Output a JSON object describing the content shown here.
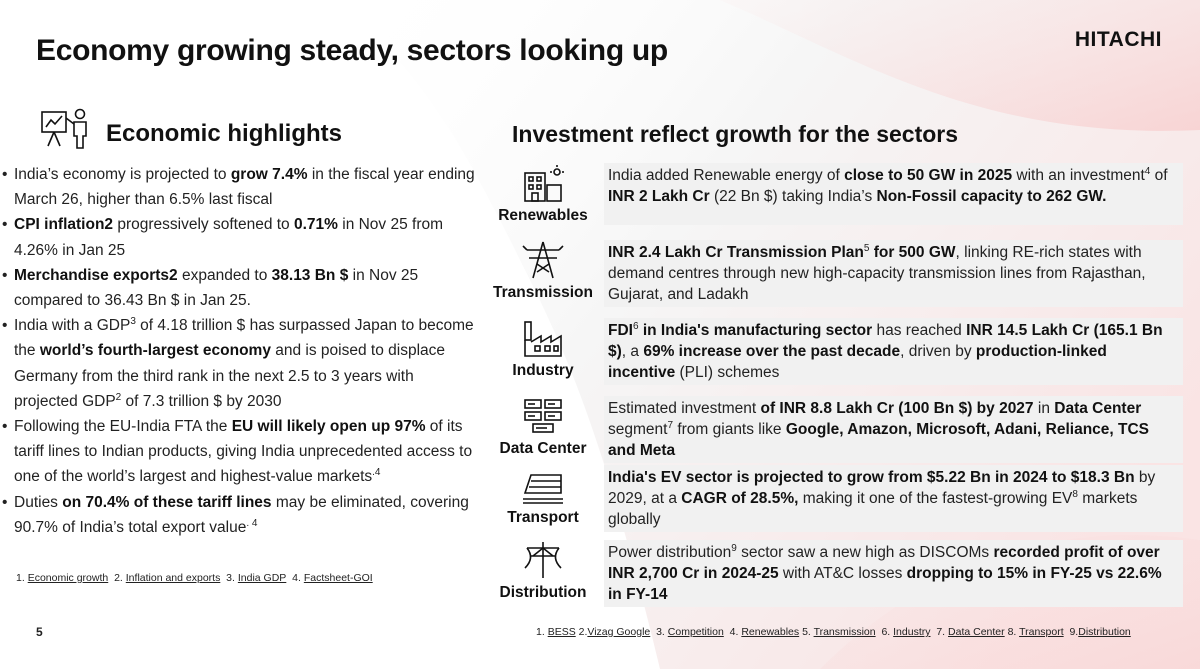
{
  "title": "Economy growing steady, sectors looking up",
  "logo": "HITACHI",
  "page_number": "5",
  "left": {
    "heading": "Economic highlights",
    "icon": "presentation-chart-icon",
    "bullets": [
      {
        "p1": "India’s economy is projected to ",
        "b1": "grow 7.4%",
        "p2": " in the fiscal year ending March 26, higher than 6.5%  last fiscal"
      },
      {
        "b1": "CPI inflation2",
        "p1": " progressively softened to ",
        "b2": "0.71%",
        "p2": " in Nov 25 from 4.26% in Jan 25"
      },
      {
        "b1": "Merchandise exports2",
        "p1": " expanded to ",
        "b2": "38.13 Bn $",
        "p2": " in Nov 25 compared to 36.43 Bn $ in Jan 25."
      },
      {
        "p1": "India with a GDP",
        "s1": "3",
        "p2": " of  4.18 trillion $ has surpassed Japan to become the ",
        "b1": "world’s fourth-largest economy",
        "p3": " and is poised to displace Germany from the third rank in the next 2.5 to 3 years with projected GDP",
        "s2": "2",
        "p4": " of  7.3 trillion $ by 2030"
      },
      {
        "p1": "Following the EU-India FTA the ",
        "b1": "EU will likely open up 97%",
        "p2": " of its tariff lines to Indian products, giving India unprecedented access to one of the world’s largest and highest-value markets",
        "s1": ".4"
      },
      {
        "p1": "Duties ",
        "b1": "on 70.4% of these tariff lines",
        "p2": " may be eliminated, covering 90.7% of India’s total export value",
        "s1": ". 4"
      }
    ],
    "footnotes": {
      "n1": "1.",
      "l1": "Economic growth",
      "n2": "2.",
      "l2": "Inflation and exports",
      "n3": "3.",
      "l3": "India GDP",
      "n4": "4.",
      "l4": "Factsheet-GOI"
    }
  },
  "right": {
    "heading": "Investment reflect growth for the sectors",
    "sectors": [
      {
        "name": "Renewables",
        "icon": "solar-building-icon",
        "p1": "India added Renewable energy of ",
        "b1": "close to 50 GW in 2025",
        "p2": " with an investment",
        "s1": "4",
        "p3": " of ",
        "b2": "INR 2 Lakh Cr",
        "p4": " (22 Bn $) taking India’s ",
        "b3": "Non-Fossil capacity to 262 GW."
      },
      {
        "name": "Transmission",
        "icon": "transmission-tower-icon",
        "b1": "INR 2.4 Lakh Cr Transmission Plan",
        "s1": "5",
        "b2": " for 500 GW",
        "p1": ", linking RE-rich states with demand centres through new high-capacity transmission lines from Rajasthan, Gujarat, and Ladakh"
      },
      {
        "name": "Industry",
        "icon": "factory-icon",
        "b1": "FDI",
        "s1": "6",
        "b2": " in India's manufacturing sector",
        "p1": " has reached ",
        "b3": "INR 14.5 Lakh Cr (165.1 Bn $)",
        "p2": ", a ",
        "b4": "69% increase over the past decade",
        "p3": ", driven by ",
        "b5": "production-linked incentive",
        "p4": " (PLI) schemes"
      },
      {
        "name": "Data Center",
        "icon": "server-rack-icon",
        "p1": "Estimated investment ",
        "b1": "of INR 8.8 Lakh Cr (100 Bn $) by 2027",
        "p2": " in ",
        "b2": "Data Center",
        "p3": " segment",
        "s1": "7",
        "p4": " from giants like ",
        "b3": "Google, Amazon, Microsoft, Adani, Reliance, TCS and Meta"
      },
      {
        "name": "Transport",
        "icon": "train-icon",
        "b1": "India's EV sector is projected to grow from $5.22 Bn in 2024 to $18.3 Bn",
        "p1": " by 2029, at a ",
        "b2": "CAGR of 28.5%,",
        "p2": " making it one of the fastest-growing EV",
        "s1": "8",
        "p3": " markets globally"
      },
      {
        "name": "Distribution",
        "icon": "power-pole-icon",
        "p1": "Power distribution",
        "s1": "9",
        "p2": " sector saw a new high as DISCOMs ",
        "b1": "recorded profit of over INR 2,700 Cr in 2024-25",
        "p3": " with AT&C losses ",
        "b2": "dropping to 15% in FY-25 vs 22.6% in FY-14"
      }
    ],
    "footnotes": {
      "n1": "1.",
      "l1": "BESS",
      "n2": "2.",
      "l2": "Vizag Google",
      "n3": "3.",
      "l3": "Competition",
      "n4": "4.",
      "l4": "Renewables",
      "n5": "5.",
      "l5": "Transmission",
      "n6": "6.",
      "l6": "Industry",
      "n7": "7.",
      "l7": "Data Center",
      "n8": "8.",
      "l8": "Transport",
      "n9": "9.",
      "l9": "Distribution"
    }
  },
  "colors": {
    "accent_red": "#e60012",
    "swoosh": "#f6d7d7",
    "panel": "#f1f1f1"
  }
}
